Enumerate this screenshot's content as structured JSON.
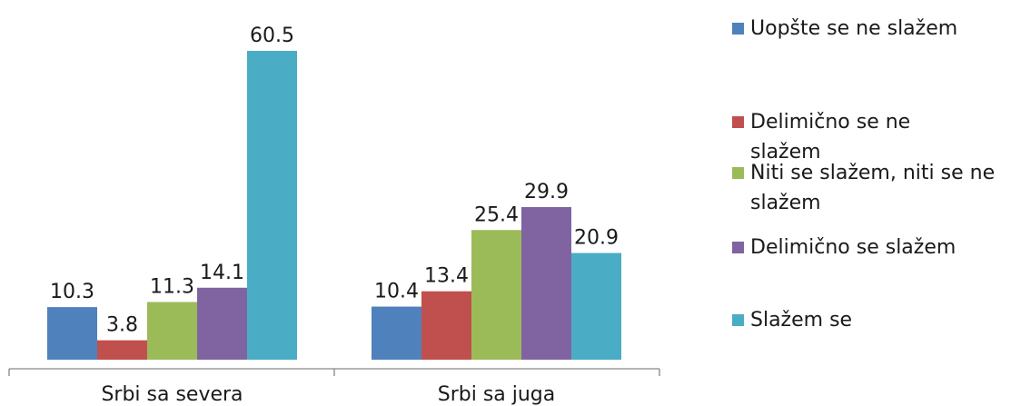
{
  "chart_data": {
    "type": "bar",
    "categories": [
      "Srbi sa severa",
      "Srbi sa juga"
    ],
    "series": [
      {
        "name": "Uopšte se ne slažem",
        "color": "#4F81BD",
        "values": [
          10.3,
          10.4
        ]
      },
      {
        "name": "Delimično se ne slažem",
        "color": "#C0504D",
        "values": [
          3.8,
          13.4
        ]
      },
      {
        "name": "Niti se slažem, niti se ne slažem",
        "color": "#9BBB59",
        "values": [
          11.3,
          25.4
        ]
      },
      {
        "name": "Delimično se slažem",
        "color": "#8064A2",
        "values": [
          14.1,
          29.9
        ]
      },
      {
        "name": "Slažem se",
        "color": "#4BACC6",
        "values": [
          60.5,
          20.9
        ]
      }
    ],
    "ylim": [
      0,
      60.5
    ],
    "data_labels": true,
    "legend_position": "right",
    "grid": false
  }
}
